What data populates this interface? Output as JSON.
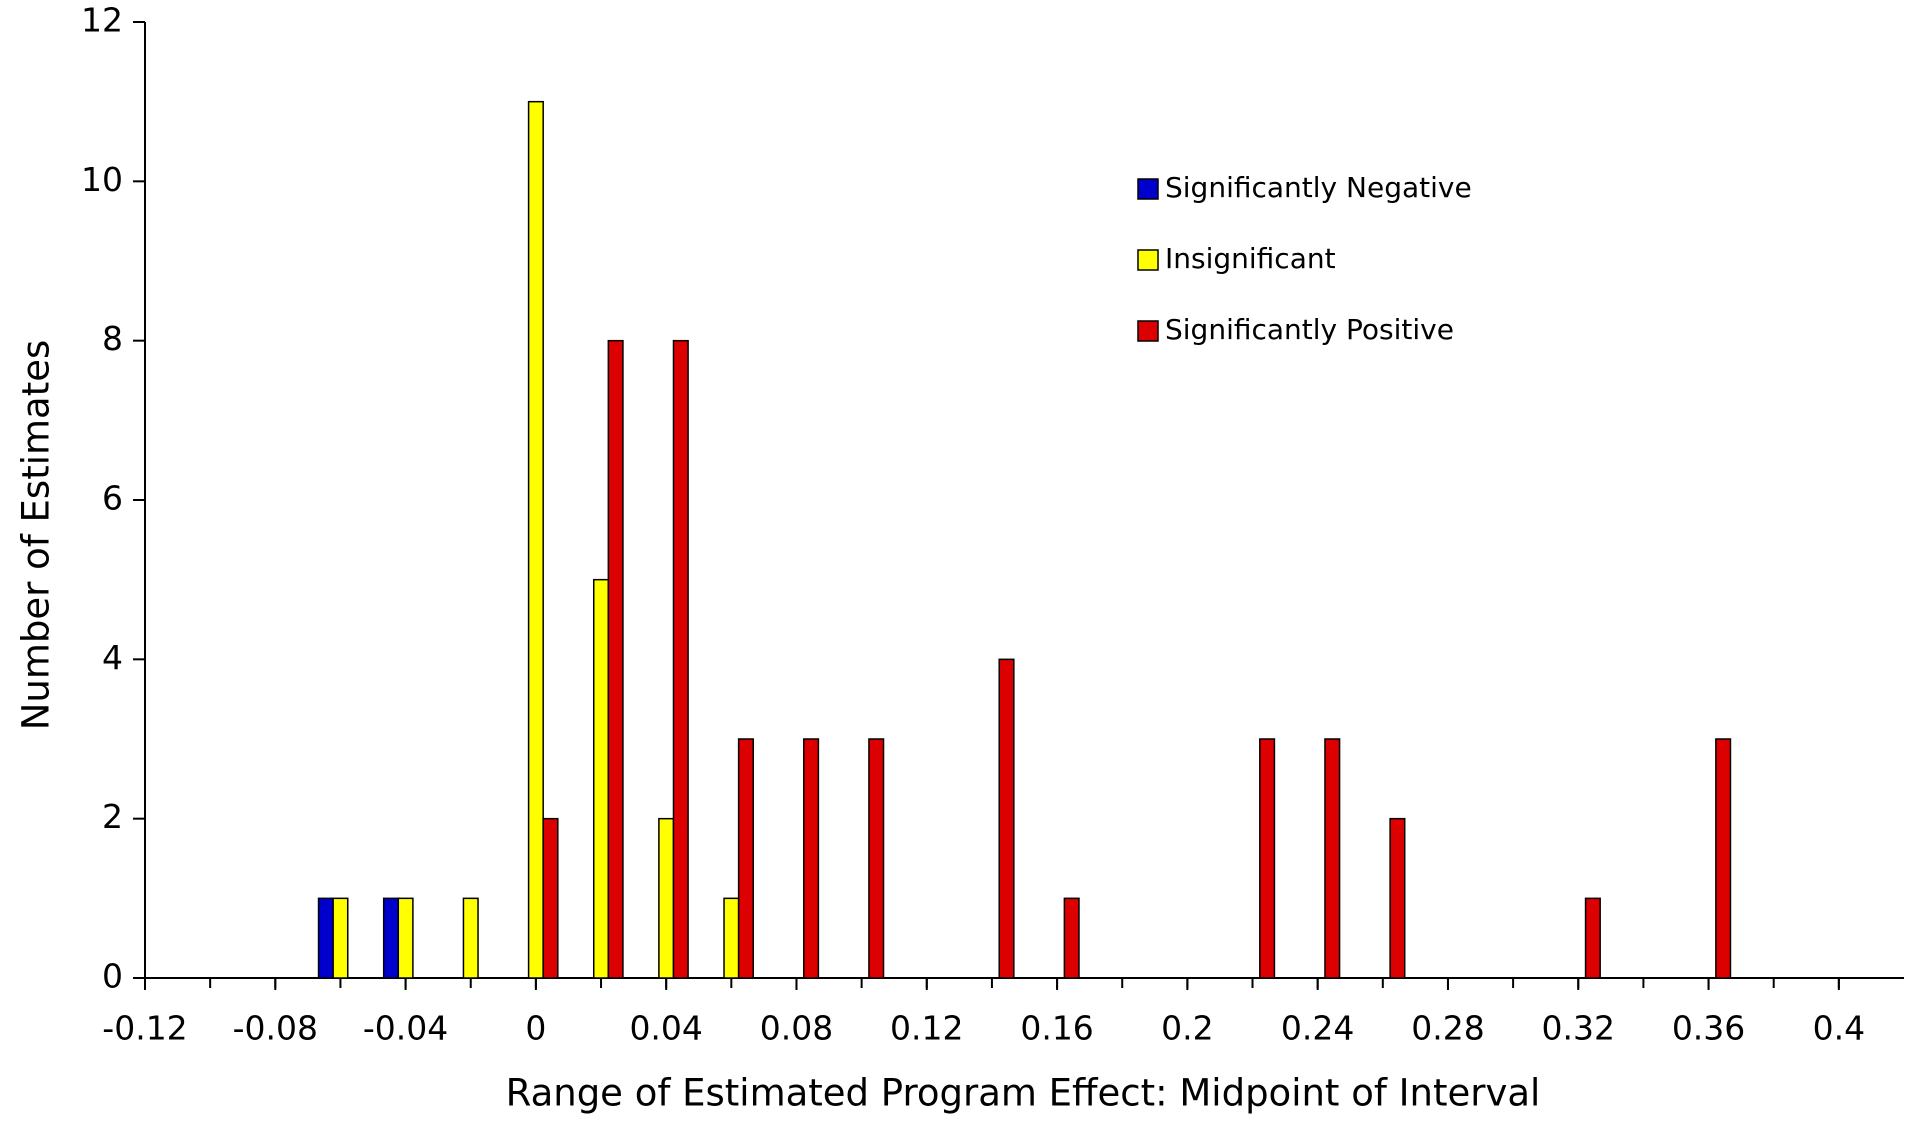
{
  "chart_data": {
    "type": "bar",
    "x_label": "Range of Estimated Program Effect: Midpoint of Interval",
    "y_label": "Number of Estimates",
    "x": [
      -0.12,
      -0.1,
      -0.08,
      -0.06,
      -0.04,
      -0.02,
      0,
      0.02,
      0.04,
      0.06,
      0.08,
      0.1,
      0.12,
      0.14,
      0.16,
      0.18,
      0.2,
      0.22,
      0.24,
      0.26,
      0.28,
      0.3,
      0.32,
      0.34,
      0.36,
      0.38,
      0.4
    ],
    "series": [
      {
        "name": "Significantly Negative",
        "color": "#0000cc",
        "values": [
          0,
          0,
          0,
          1,
          1,
          0,
          0,
          0,
          0,
          0,
          0,
          0,
          0,
          0,
          0,
          0,
          0,
          0,
          0,
          0,
          0,
          0,
          0,
          0,
          0,
          0,
          0
        ]
      },
      {
        "name": "Insignificant",
        "color": "#ffff00",
        "values": [
          0,
          0,
          0,
          1,
          1,
          1,
          11,
          5,
          2,
          1,
          0,
          0,
          0,
          0,
          0,
          0,
          0,
          0,
          0,
          0,
          0,
          0,
          0,
          0,
          0,
          0,
          0
        ]
      },
      {
        "name": "Significantly Positive",
        "color": "#dd0000",
        "values": [
          0,
          0,
          0,
          0,
          0,
          0,
          2,
          8,
          8,
          3,
          3,
          3,
          0,
          4,
          1,
          0,
          0,
          3,
          3,
          2,
          0,
          0,
          1,
          0,
          3,
          0,
          0
        ]
      }
    ],
    "xlim": [
      -0.12,
      0.42
    ],
    "xticks": [
      -0.12,
      -0.08,
      -0.04,
      0,
      0.04,
      0.08,
      0.12,
      0.16,
      0.2,
      0.24,
      0.28,
      0.32,
      0.36,
      0.4
    ],
    "ylim": [
      0,
      12
    ],
    "yticks": [
      0,
      2,
      4,
      6,
      8,
      10,
      12
    ],
    "grid": false,
    "legend": "upper-center"
  }
}
